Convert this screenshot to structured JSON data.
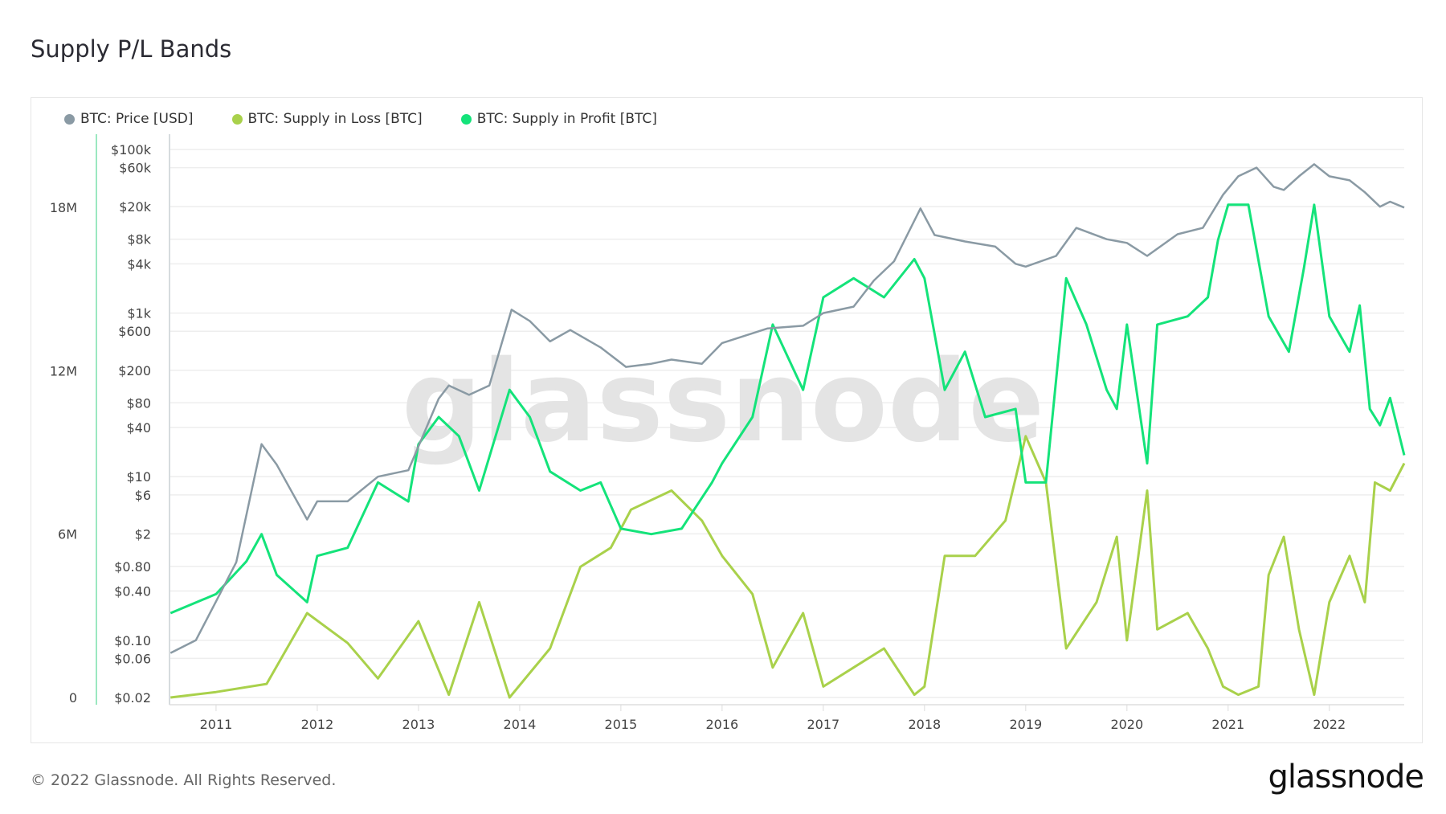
{
  "title": "Supply P/L Bands",
  "footer": "© 2022 Glassnode. All Rights Reserved.",
  "logo": "glassnode",
  "chart_data": {
    "type": "line",
    "title": "Supply P/L Bands",
    "legend_position": "top-left",
    "grid": true,
    "x_ticks": [
      "2011",
      "2012",
      "2013",
      "2014",
      "2015",
      "2016",
      "2017",
      "2018",
      "2019",
      "2020",
      "2021",
      "2022"
    ],
    "xlim": [
      2010.54,
      2022.74
    ],
    "supply_axis": {
      "ticks": [
        {
          "v": 0,
          "label": "0"
        },
        {
          "v": 6000000,
          "label": "6M"
        },
        {
          "v": 12000000,
          "label": "12M"
        },
        {
          "v": 18000000,
          "label": "18M"
        }
      ],
      "ylim": [
        0,
        20750000
      ]
    },
    "price_axis": {
      "scale": "log",
      "ylim": [
        0.02,
        100000
      ],
      "ticks": [
        {
          "v": 100000,
          "label": "$100k"
        },
        {
          "v": 60000,
          "label": "$60k"
        },
        {
          "v": 20000,
          "label": "$20k"
        },
        {
          "v": 8000,
          "label": "$8k"
        },
        {
          "v": 4000,
          "label": "$4k"
        },
        {
          "v": 1000,
          "label": "$1k"
        },
        {
          "v": 600,
          "label": "$600"
        },
        {
          "v": 200,
          "label": "$200"
        },
        {
          "v": 80,
          "label": "$80"
        },
        {
          "v": 40,
          "label": "$40"
        },
        {
          "v": 10,
          "label": "$10"
        },
        {
          "v": 6,
          "label": "$6"
        },
        {
          "v": 2,
          "label": "$2"
        },
        {
          "v": 0.8,
          "label": "$0.80"
        },
        {
          "v": 0.4,
          "label": "$0.40"
        },
        {
          "v": 0.1,
          "label": "$0.10"
        },
        {
          "v": 0.06,
          "label": "$0.06"
        },
        {
          "v": 0.02,
          "label": "$0.02"
        }
      ]
    },
    "watermark": "glassnode",
    "series": [
      {
        "name": "BTC: Price [USD]",
        "axis": "price",
        "color": "#8a9aa4",
        "points": [
          [
            2010.55,
            0.07
          ],
          [
            2010.8,
            0.1
          ],
          [
            2011.0,
            0.3
          ],
          [
            2011.2,
            0.9
          ],
          [
            2011.45,
            25
          ],
          [
            2011.6,
            14
          ],
          [
            2011.9,
            3
          ],
          [
            2012.0,
            5
          ],
          [
            2012.3,
            5
          ],
          [
            2012.6,
            10
          ],
          [
            2012.9,
            12
          ],
          [
            2013.2,
            90
          ],
          [
            2013.3,
            130
          ],
          [
            2013.5,
            100
          ],
          [
            2013.7,
            130
          ],
          [
            2013.92,
            1100
          ],
          [
            2014.1,
            800
          ],
          [
            2014.3,
            450
          ],
          [
            2014.5,
            620
          ],
          [
            2014.8,
            380
          ],
          [
            2015.05,
            220
          ],
          [
            2015.3,
            240
          ],
          [
            2015.5,
            270
          ],
          [
            2015.8,
            240
          ],
          [
            2016.0,
            430
          ],
          [
            2016.45,
            650
          ],
          [
            2016.8,
            700
          ],
          [
            2017.0,
            1000
          ],
          [
            2017.3,
            1200
          ],
          [
            2017.5,
            2500
          ],
          [
            2017.7,
            4300
          ],
          [
            2017.96,
            19000
          ],
          [
            2018.1,
            9000
          ],
          [
            2018.4,
            7500
          ],
          [
            2018.7,
            6500
          ],
          [
            2018.9,
            4000
          ],
          [
            2019.0,
            3700
          ],
          [
            2019.3,
            5000
          ],
          [
            2019.5,
            11000
          ],
          [
            2019.8,
            8000
          ],
          [
            2020.0,
            7200
          ],
          [
            2020.2,
            5000
          ],
          [
            2020.5,
            9200
          ],
          [
            2020.75,
            11000
          ],
          [
            2020.95,
            28000
          ],
          [
            2021.1,
            47000
          ],
          [
            2021.28,
            60000
          ],
          [
            2021.45,
            35000
          ],
          [
            2021.55,
            32000
          ],
          [
            2021.7,
            47000
          ],
          [
            2021.85,
            66000
          ],
          [
            2022.0,
            47000
          ],
          [
            2022.2,
            42000
          ],
          [
            2022.35,
            30000
          ],
          [
            2022.5,
            20000
          ],
          [
            2022.6,
            23000
          ],
          [
            2022.74,
            19500
          ]
        ]
      },
      {
        "name": "BTC: Supply in Loss [BTC]",
        "axis": "supply",
        "color": "#a9d14b",
        "points": [
          [
            2010.55,
            0
          ],
          [
            2011.0,
            200000
          ],
          [
            2011.5,
            500000
          ],
          [
            2011.9,
            3100000
          ],
          [
            2012.3,
            2000000
          ],
          [
            2012.6,
            700000
          ],
          [
            2013.0,
            2800000
          ],
          [
            2013.3,
            100000
          ],
          [
            2013.6,
            3500000
          ],
          [
            2013.9,
            0
          ],
          [
            2014.3,
            1800000
          ],
          [
            2014.6,
            4800000
          ],
          [
            2014.9,
            5500000
          ],
          [
            2015.1,
            6900000
          ],
          [
            2015.5,
            7600000
          ],
          [
            2015.8,
            6500000
          ],
          [
            2016.0,
            5200000
          ],
          [
            2016.3,
            3800000
          ],
          [
            2016.5,
            1100000
          ],
          [
            2016.8,
            3100000
          ],
          [
            2017.0,
            400000
          ],
          [
            2017.3,
            1100000
          ],
          [
            2017.6,
            1800000
          ],
          [
            2017.9,
            100000
          ],
          [
            2018.0,
            400000
          ],
          [
            2018.2,
            5200000
          ],
          [
            2018.5,
            5200000
          ],
          [
            2018.8,
            6500000
          ],
          [
            2019.0,
            9600000
          ],
          [
            2019.2,
            7900000
          ],
          [
            2019.4,
            1800000
          ],
          [
            2019.7,
            3500000
          ],
          [
            2019.9,
            5900000
          ],
          [
            2020.0,
            2100000
          ],
          [
            2020.2,
            7600000
          ],
          [
            2020.3,
            2500000
          ],
          [
            2020.6,
            3100000
          ],
          [
            2020.8,
            1800000
          ],
          [
            2020.95,
            400000
          ],
          [
            2021.1,
            100000
          ],
          [
            2021.3,
            400000
          ],
          [
            2021.4,
            4500000
          ],
          [
            2021.55,
            5900000
          ],
          [
            2021.7,
            2500000
          ],
          [
            2021.85,
            100000
          ],
          [
            2022.0,
            3500000
          ],
          [
            2022.2,
            5200000
          ],
          [
            2022.35,
            3500000
          ],
          [
            2022.45,
            7900000
          ],
          [
            2022.6,
            7600000
          ],
          [
            2022.74,
            8600000
          ]
        ]
      },
      {
        "name": "BTC: Supply in Profit [BTC]",
        "axis": "supply",
        "color": "#14e37a",
        "points": [
          [
            2010.55,
            3100000
          ],
          [
            2011.0,
            3800000
          ],
          [
            2011.3,
            5000000
          ],
          [
            2011.45,
            6000000
          ],
          [
            2011.6,
            4500000
          ],
          [
            2011.9,
            3500000
          ],
          [
            2012.0,
            5200000
          ],
          [
            2012.3,
            5500000
          ],
          [
            2012.6,
            7900000
          ],
          [
            2012.9,
            7200000
          ],
          [
            2013.0,
            9300000
          ],
          [
            2013.2,
            10300000
          ],
          [
            2013.4,
            9600000
          ],
          [
            2013.6,
            7600000
          ],
          [
            2013.9,
            11300000
          ],
          [
            2014.1,
            10300000
          ],
          [
            2014.3,
            8300000
          ],
          [
            2014.6,
            7600000
          ],
          [
            2014.8,
            7900000
          ],
          [
            2015.0,
            6200000
          ],
          [
            2015.3,
            6000000
          ],
          [
            2015.6,
            6200000
          ],
          [
            2015.9,
            7900000
          ],
          [
            2016.0,
            8600000
          ],
          [
            2016.3,
            10300000
          ],
          [
            2016.5,
            13700000
          ],
          [
            2016.8,
            11300000
          ],
          [
            2017.0,
            14700000
          ],
          [
            2017.3,
            15400000
          ],
          [
            2017.6,
            14700000
          ],
          [
            2017.9,
            16100000
          ],
          [
            2018.0,
            15400000
          ],
          [
            2018.2,
            11300000
          ],
          [
            2018.4,
            12700000
          ],
          [
            2018.6,
            10300000
          ],
          [
            2018.9,
            10600000
          ],
          [
            2019.0,
            7900000
          ],
          [
            2019.2,
            7900000
          ],
          [
            2019.4,
            15400000
          ],
          [
            2019.6,
            13700000
          ],
          [
            2019.8,
            11300000
          ],
          [
            2019.9,
            10600000
          ],
          [
            2020.0,
            13700000
          ],
          [
            2020.2,
            8600000
          ],
          [
            2020.3,
            13700000
          ],
          [
            2020.6,
            14000000
          ],
          [
            2020.8,
            14700000
          ],
          [
            2020.9,
            16800000
          ],
          [
            2021.0,
            18100000
          ],
          [
            2021.2,
            18100000
          ],
          [
            2021.4,
            14000000
          ],
          [
            2021.6,
            12700000
          ],
          [
            2021.75,
            15800000
          ],
          [
            2021.85,
            18100000
          ],
          [
            2022.0,
            14000000
          ],
          [
            2022.2,
            12700000
          ],
          [
            2022.3,
            14400000
          ],
          [
            2022.4,
            10600000
          ],
          [
            2022.5,
            10000000
          ],
          [
            2022.6,
            11000000
          ],
          [
            2022.74,
            8900000
          ]
        ]
      }
    ]
  }
}
